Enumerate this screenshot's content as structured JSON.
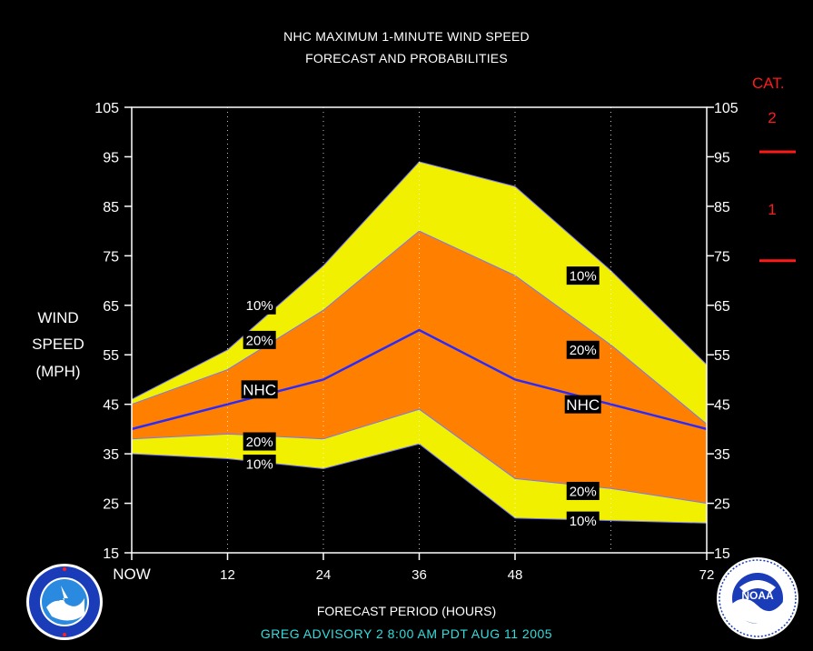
{
  "title_line1": "NHC MAXIMUM 1-MINUTE WIND SPEED",
  "title_line2": "FORECAST AND PROBABILITIES",
  "ylabel_lines": [
    "WIND",
    "SPEED",
    "(MPH)"
  ],
  "xlabel": "FORECAST PERIOD (HOURS)",
  "footer": "GREG   ADVISORY  2  8:00  AM  PDT  AUG  11  2005",
  "cat_header": "CAT.",
  "categories": [
    {
      "label": "2",
      "mph": 96
    },
    {
      "label": "1",
      "mph": 74
    }
  ],
  "logos": {
    "left": "nws-logo",
    "right": "noaa-logo",
    "noaa_text": "NOAA"
  },
  "chart_data": {
    "type": "area",
    "x_ticks": [
      {
        "hour": 0,
        "label": "NOW"
      },
      {
        "hour": 12,
        "label": "12"
      },
      {
        "hour": 24,
        "label": "24"
      },
      {
        "hour": 36,
        "label": "36"
      },
      {
        "hour": 48,
        "label": "48"
      },
      {
        "hour": 72,
        "label": "72"
      }
    ],
    "gridlines_x": [
      12,
      24,
      36,
      48,
      60
    ],
    "xlim": [
      0,
      72
    ],
    "ylim": [
      15,
      105
    ],
    "y_ticks": [
      15,
      25,
      35,
      45,
      55,
      65,
      75,
      85,
      95,
      105
    ],
    "x": [
      0,
      12,
      24,
      36,
      48,
      60,
      72
    ],
    "bands": {
      "upper10": [
        46,
        56,
        73,
        94,
        89,
        72,
        53
      ],
      "upper20": [
        45,
        52,
        64,
        80,
        71,
        57,
        41
      ],
      "nhc": [
        40,
        45,
        50,
        60,
        50,
        45,
        40
      ],
      "lower20": [
        38,
        39,
        38,
        44,
        30,
        28,
        25
      ],
      "lower10": [
        35,
        34,
        32,
        37,
        22,
        21.5,
        21
      ]
    },
    "labels": [
      {
        "text": "10%",
        "x": 16,
        "y": 65
      },
      {
        "text": "20%",
        "x": 16,
        "y": 58
      },
      {
        "text": "NHC",
        "x": 16,
        "y": 48
      },
      {
        "text": "20%",
        "x": 16,
        "y": 37.5
      },
      {
        "text": "10%",
        "x": 16,
        "y": 33
      },
      {
        "text": "10%",
        "x": 56.5,
        "y": 71
      },
      {
        "text": "20%",
        "x": 56.5,
        "y": 56
      },
      {
        "text": "NHC",
        "x": 56.5,
        "y": 45
      },
      {
        "text": "20%",
        "x": 56.5,
        "y": 27.5
      },
      {
        "text": "10%",
        "x": 56.5,
        "y": 21.5
      }
    ],
    "colors": {
      "outer": "#f0f000",
      "inner": "#ff8000",
      "nhc": "#2a2aff",
      "frame": "#ffffff",
      "cat": "#ff1a1a"
    }
  }
}
